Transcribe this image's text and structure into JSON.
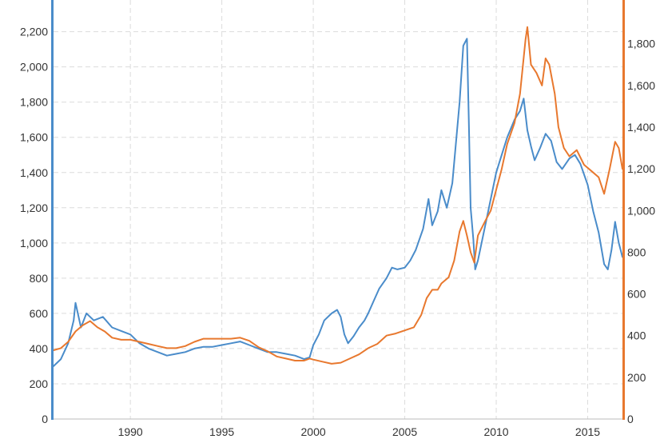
{
  "chart_data": {
    "type": "line",
    "title": "",
    "xlabel": "",
    "ylabel": "",
    "y2label": "",
    "grid": true,
    "legend": "none",
    "xlim": [
      1985.8,
      2016.9
    ],
    "ylim": [
      0,
      2380
    ],
    "y2lim": [
      0,
      2010
    ],
    "x_ticks": [
      1990,
      1995,
      2000,
      2005,
      2010,
      2015
    ],
    "x_tick_labels": [
      "1990",
      "1995",
      "2000",
      "2005",
      "2010",
      "2015"
    ],
    "y_ticks": [
      0,
      200,
      400,
      600,
      800,
      1000,
      1200,
      1400,
      1600,
      1800,
      2000,
      2200
    ],
    "y_tick_labels": [
      "0",
      "200",
      "400",
      "600",
      "800",
      "1,000",
      "1,200",
      "1,400",
      "1,600",
      "1,800",
      "2,000",
      "2,200"
    ],
    "y2_ticks": [
      0,
      200,
      400,
      600,
      800,
      1000,
      1200,
      1400,
      1600,
      1800
    ],
    "y2_tick_labels": [
      "0",
      "200",
      "400",
      "600",
      "800",
      "1,000",
      "1,200",
      "1,400",
      "1,600",
      "1,800"
    ],
    "colors": {
      "left_axis": "#4a8cca",
      "right_axis": "#e8782e"
    },
    "series": [
      {
        "axis": "left",
        "color": "#4a8cca",
        "points": [
          [
            1985.8,
            300
          ],
          [
            1986.2,
            340
          ],
          [
            1986.6,
            430
          ],
          [
            1986.9,
            560
          ],
          [
            1987.0,
            660
          ],
          [
            1987.3,
            520
          ],
          [
            1987.6,
            600
          ],
          [
            1988.0,
            560
          ],
          [
            1988.5,
            580
          ],
          [
            1989.0,
            520
          ],
          [
            1989.5,
            500
          ],
          [
            1990.0,
            480
          ],
          [
            1990.5,
            430
          ],
          [
            1991.0,
            400
          ],
          [
            1991.5,
            380
          ],
          [
            1992.0,
            360
          ],
          [
            1992.5,
            370
          ],
          [
            1993.0,
            380
          ],
          [
            1993.5,
            400
          ],
          [
            1994.0,
            410
          ],
          [
            1994.5,
            410
          ],
          [
            1995.0,
            420
          ],
          [
            1995.5,
            430
          ],
          [
            1996.0,
            440
          ],
          [
            1996.5,
            420
          ],
          [
            1997.0,
            400
          ],
          [
            1997.5,
            380
          ],
          [
            1998.0,
            380
          ],
          [
            1998.5,
            370
          ],
          [
            1999.0,
            360
          ],
          [
            1999.5,
            340
          ],
          [
            1999.8,
            350
          ],
          [
            2000.0,
            420
          ],
          [
            2000.3,
            480
          ],
          [
            2000.6,
            560
          ],
          [
            2001.0,
            600
          ],
          [
            2001.3,
            620
          ],
          [
            2001.5,
            580
          ],
          [
            2001.7,
            480
          ],
          [
            2001.9,
            430
          ],
          [
            2002.2,
            470
          ],
          [
            2002.5,
            520
          ],
          [
            2002.8,
            560
          ],
          [
            2003.0,
            600
          ],
          [
            2003.3,
            670
          ],
          [
            2003.6,
            740
          ],
          [
            2004.0,
            800
          ],
          [
            2004.3,
            860
          ],
          [
            2004.6,
            850
          ],
          [
            2005.0,
            860
          ],
          [
            2005.3,
            900
          ],
          [
            2005.6,
            960
          ],
          [
            2006.0,
            1080
          ],
          [
            2006.3,
            1250
          ],
          [
            2006.5,
            1100
          ],
          [
            2006.8,
            1180
          ],
          [
            2007.0,
            1300
          ],
          [
            2007.3,
            1200
          ],
          [
            2007.6,
            1340
          ],
          [
            2008.0,
            1800
          ],
          [
            2008.2,
            2120
          ],
          [
            2008.4,
            2160
          ],
          [
            2008.5,
            1700
          ],
          [
            2008.6,
            1200
          ],
          [
            2008.75,
            1020
          ],
          [
            2008.85,
            850
          ],
          [
            2009.0,
            900
          ],
          [
            2009.3,
            1050
          ],
          [
            2009.6,
            1200
          ],
          [
            2010.0,
            1400
          ],
          [
            2010.3,
            1500
          ],
          [
            2010.6,
            1600
          ],
          [
            2011.0,
            1700
          ],
          [
            2011.3,
            1750
          ],
          [
            2011.5,
            1820
          ],
          [
            2011.7,
            1640
          ],
          [
            2011.9,
            1550
          ],
          [
            2012.1,
            1470
          ],
          [
            2012.4,
            1540
          ],
          [
            2012.7,
            1620
          ],
          [
            2013.0,
            1580
          ],
          [
            2013.3,
            1460
          ],
          [
            2013.6,
            1420
          ],
          [
            2014.0,
            1480
          ],
          [
            2014.3,
            1500
          ],
          [
            2014.6,
            1450
          ],
          [
            2015.0,
            1330
          ],
          [
            2015.3,
            1180
          ],
          [
            2015.6,
            1060
          ],
          [
            2015.9,
            880
          ],
          [
            2016.1,
            850
          ],
          [
            2016.3,
            960
          ],
          [
            2016.5,
            1120
          ],
          [
            2016.7,
            1000
          ],
          [
            2016.9,
            920
          ]
        ]
      },
      {
        "axis": "right",
        "color": "#e8782e",
        "points": [
          [
            1985.8,
            330
          ],
          [
            1986.2,
            340
          ],
          [
            1986.6,
            370
          ],
          [
            1987.0,
            420
          ],
          [
            1987.4,
            450
          ],
          [
            1987.8,
            470
          ],
          [
            1988.2,
            440
          ],
          [
            1988.6,
            420
          ],
          [
            1989.0,
            390
          ],
          [
            1989.5,
            380
          ],
          [
            1990.0,
            380
          ],
          [
            1990.5,
            370
          ],
          [
            1991.0,
            360
          ],
          [
            1991.5,
            350
          ],
          [
            1992.0,
            340
          ],
          [
            1992.5,
            340
          ],
          [
            1993.0,
            350
          ],
          [
            1993.5,
            370
          ],
          [
            1994.0,
            385
          ],
          [
            1994.5,
            385
          ],
          [
            1995.0,
            385
          ],
          [
            1995.5,
            385
          ],
          [
            1996.0,
            390
          ],
          [
            1996.5,
            375
          ],
          [
            1997.0,
            345
          ],
          [
            1997.5,
            325
          ],
          [
            1998.0,
            300
          ],
          [
            1998.5,
            290
          ],
          [
            1999.0,
            280
          ],
          [
            1999.5,
            280
          ],
          [
            1999.8,
            290
          ],
          [
            2000.0,
            285
          ],
          [
            2000.5,
            275
          ],
          [
            2001.0,
            265
          ],
          [
            2001.5,
            270
          ],
          [
            2002.0,
            290
          ],
          [
            2002.5,
            310
          ],
          [
            2003.0,
            340
          ],
          [
            2003.5,
            360
          ],
          [
            2004.0,
            400
          ],
          [
            2004.5,
            410
          ],
          [
            2005.0,
            425
          ],
          [
            2005.5,
            440
          ],
          [
            2005.9,
            500
          ],
          [
            2006.2,
            580
          ],
          [
            2006.5,
            620
          ],
          [
            2006.8,
            620
          ],
          [
            2007.0,
            650
          ],
          [
            2007.4,
            680
          ],
          [
            2007.7,
            760
          ],
          [
            2008.0,
            900
          ],
          [
            2008.2,
            950
          ],
          [
            2008.4,
            880
          ],
          [
            2008.6,
            800
          ],
          [
            2008.8,
            750
          ],
          [
            2009.0,
            880
          ],
          [
            2009.4,
            950
          ],
          [
            2009.7,
            1000
          ],
          [
            2010.0,
            1100
          ],
          [
            2010.3,
            1200
          ],
          [
            2010.6,
            1320
          ],
          [
            2011.0,
            1420
          ],
          [
            2011.3,
            1560
          ],
          [
            2011.6,
            1820
          ],
          [
            2011.7,
            1880
          ],
          [
            2011.9,
            1700
          ],
          [
            2012.2,
            1660
          ],
          [
            2012.5,
            1600
          ],
          [
            2012.7,
            1730
          ],
          [
            2012.9,
            1700
          ],
          [
            2013.2,
            1560
          ],
          [
            2013.4,
            1400
          ],
          [
            2013.7,
            1300
          ],
          [
            2014.0,
            1260
          ],
          [
            2014.4,
            1290
          ],
          [
            2014.8,
            1220
          ],
          [
            2015.2,
            1190
          ],
          [
            2015.6,
            1160
          ],
          [
            2015.9,
            1080
          ],
          [
            2016.2,
            1200
          ],
          [
            2016.5,
            1330
          ],
          [
            2016.7,
            1300
          ],
          [
            2016.9,
            1200
          ]
        ]
      }
    ]
  }
}
